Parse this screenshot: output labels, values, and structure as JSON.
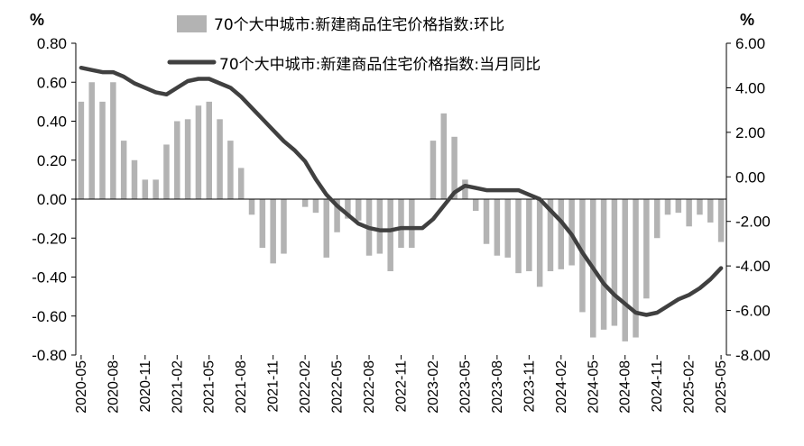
{
  "chart_data": {
    "type": "bar+line",
    "left_unit": "%",
    "right_unit": "%",
    "left_axis": {
      "min": -0.8,
      "max": 0.8,
      "step": 0.2,
      "tick_labels": [
        "0.80",
        "0.60",
        "0.40",
        "0.20",
        "0.00",
        "-0.20",
        "-0.40",
        "-0.60",
        "-0.80"
      ]
    },
    "right_axis": {
      "min": -8,
      "max": 6,
      "step": 2,
      "tick_labels": [
        "6.00",
        "4.00",
        "2.00",
        "0.00",
        "-2.00",
        "-4.00",
        "-6.00",
        "-8.00"
      ]
    },
    "x_tick_labels": [
      "2020-05",
      "2020-08",
      "2020-11",
      "2021-02",
      "2021-05",
      "2021-08",
      "2021-11",
      "2022-02",
      "2022-05",
      "2022-08",
      "2022-11",
      "2023-02",
      "2023-05",
      "2023-08",
      "2023-11",
      "2024-02",
      "2024-05",
      "2024-08",
      "2024-11",
      "2025-02",
      "2025-05"
    ],
    "x": [
      "2020-05",
      "2020-06",
      "2020-07",
      "2020-08",
      "2020-09",
      "2020-10",
      "2020-11",
      "2020-12",
      "2021-01",
      "2021-02",
      "2021-03",
      "2021-04",
      "2021-05",
      "2021-06",
      "2021-07",
      "2021-08",
      "2021-09",
      "2021-10",
      "2021-11",
      "2021-12",
      "2022-01",
      "2022-02",
      "2022-03",
      "2022-04",
      "2022-05",
      "2022-06",
      "2022-07",
      "2022-08",
      "2022-09",
      "2022-10",
      "2022-11",
      "2022-12",
      "2023-01",
      "2023-02",
      "2023-03",
      "2023-04",
      "2023-05",
      "2023-06",
      "2023-07",
      "2023-08",
      "2023-09",
      "2023-10",
      "2023-11",
      "2023-12",
      "2024-01",
      "2024-02",
      "2024-03",
      "2024-04",
      "2024-05",
      "2024-06",
      "2024-07",
      "2024-08",
      "2024-09",
      "2024-10",
      "2024-11",
      "2024-12",
      "2025-01",
      "2025-02",
      "2025-03",
      "2025-04",
      "2025-05"
    ],
    "series": [
      {
        "name": "70个大中城市:新建商品住宅价格指数:环比",
        "type": "bar",
        "axis": "left",
        "color": "#b3b3b3",
        "values": [
          0.5,
          0.6,
          0.5,
          0.6,
          0.3,
          0.2,
          0.1,
          0.1,
          0.28,
          0.4,
          0.41,
          0.48,
          0.5,
          0.41,
          0.3,
          0.16,
          -0.08,
          -0.25,
          -0.33,
          -0.28,
          0.0,
          -0.04,
          -0.07,
          -0.3,
          -0.17,
          -0.1,
          -0.11,
          -0.29,
          -0.28,
          -0.37,
          -0.25,
          -0.25,
          0.0,
          0.3,
          0.44,
          0.32,
          0.1,
          -0.06,
          -0.23,
          -0.29,
          -0.3,
          -0.38,
          -0.37,
          -0.45,
          -0.37,
          -0.36,
          -0.34,
          -0.58,
          -0.71,
          -0.67,
          -0.65,
          -0.73,
          -0.71,
          -0.51,
          -0.2,
          -0.08,
          -0.07,
          -0.14,
          -0.08,
          -0.12,
          -0.22
        ]
      },
      {
        "name": "70个大中城市:新建商品住宅价格指数:当月同比",
        "type": "line",
        "axis": "right",
        "color": "#404040",
        "values": [
          4.9,
          4.8,
          4.7,
          4.7,
          4.5,
          4.2,
          4.0,
          3.8,
          3.7,
          4.0,
          4.3,
          4.4,
          4.4,
          4.2,
          4.0,
          3.6,
          3.1,
          2.6,
          2.1,
          1.6,
          1.2,
          0.7,
          -0.1,
          -0.8,
          -1.3,
          -1.7,
          -2.1,
          -2.3,
          -2.4,
          -2.4,
          -2.3,
          -2.3,
          -2.3,
          -1.9,
          -1.3,
          -0.7,
          -0.4,
          -0.5,
          -0.6,
          -0.6,
          -0.6,
          -0.6,
          -0.8,
          -1.0,
          -1.5,
          -2.0,
          -2.6,
          -3.4,
          -4.1,
          -4.8,
          -5.3,
          -5.7,
          -6.1,
          -6.2,
          -6.1,
          -5.8,
          -5.5,
          -5.3,
          -5.0,
          -4.6,
          -4.1
        ]
      }
    ],
    "legend_position": "top",
    "grid": false
  }
}
